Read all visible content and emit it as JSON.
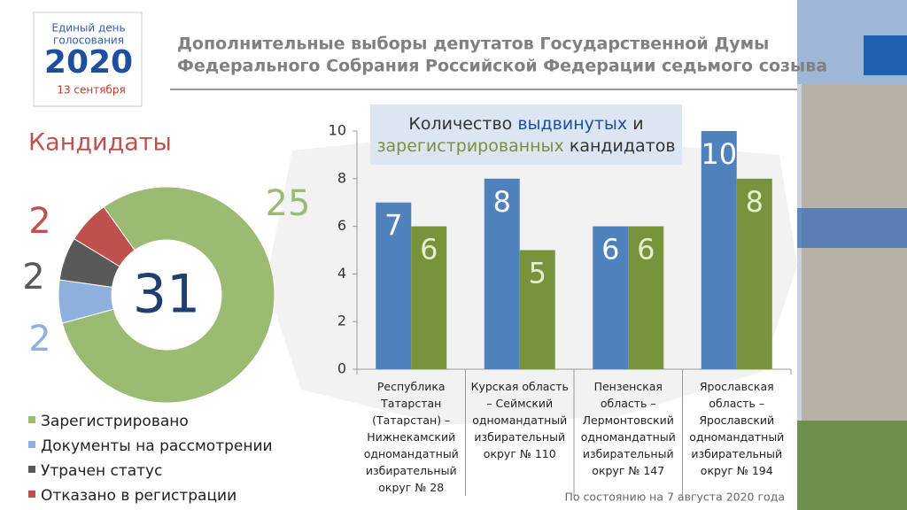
{
  "logo": {
    "line1": "Единый день",
    "line2": "голосования",
    "year": "2020",
    "date": "13 сентября"
  },
  "heading": {
    "line1": "Дополнительные  выборы депутатов Государственной Думы",
    "line2": "Федерального Собрания Российской Федерации седьмого созыва"
  },
  "note": "По состоянию на 7 августа 2020 года",
  "chart_data": [
    {
      "type": "donut",
      "title": "Кандидаты",
      "total": 31,
      "categories": [
        "Зарегистрировано",
        "Документы на рассмотрении",
        "Утрачен статус",
        "Отказано в регистрации"
      ],
      "values": [
        25,
        2,
        2,
        2
      ],
      "colors": [
        "#9bbb72",
        "#8fb0dc",
        "#595959",
        "#c0504d"
      ]
    },
    {
      "type": "bar",
      "title_parts": [
        "Количество",
        "и",
        "кандидатов"
      ],
      "categories": [
        "Республика Татарстан (Татарстан) – Нижнекамский одномандатный избирательный округ № 28",
        "Курская область – Сеймский одномандатный избирательный округ № 110",
        "Пензенская область – Лермонтовский одномандатный избирательный округ № 147",
        "Ярославская область – Ярославский одномандатный избирательный округ № 194"
      ],
      "series": [
        {
          "name": "выдвинутых",
          "color": "#4f81bd",
          "values": [
            7,
            8,
            6,
            10
          ]
        },
        {
          "name": "зарегистрированных",
          "color": "#77933c",
          "values": [
            6,
            5,
            6,
            8
          ]
        }
      ],
      "ylim": [
        0,
        10
      ],
      "yticks": [
        0,
        2,
        4,
        6,
        8,
        10
      ],
      "grid": false
    }
  ]
}
